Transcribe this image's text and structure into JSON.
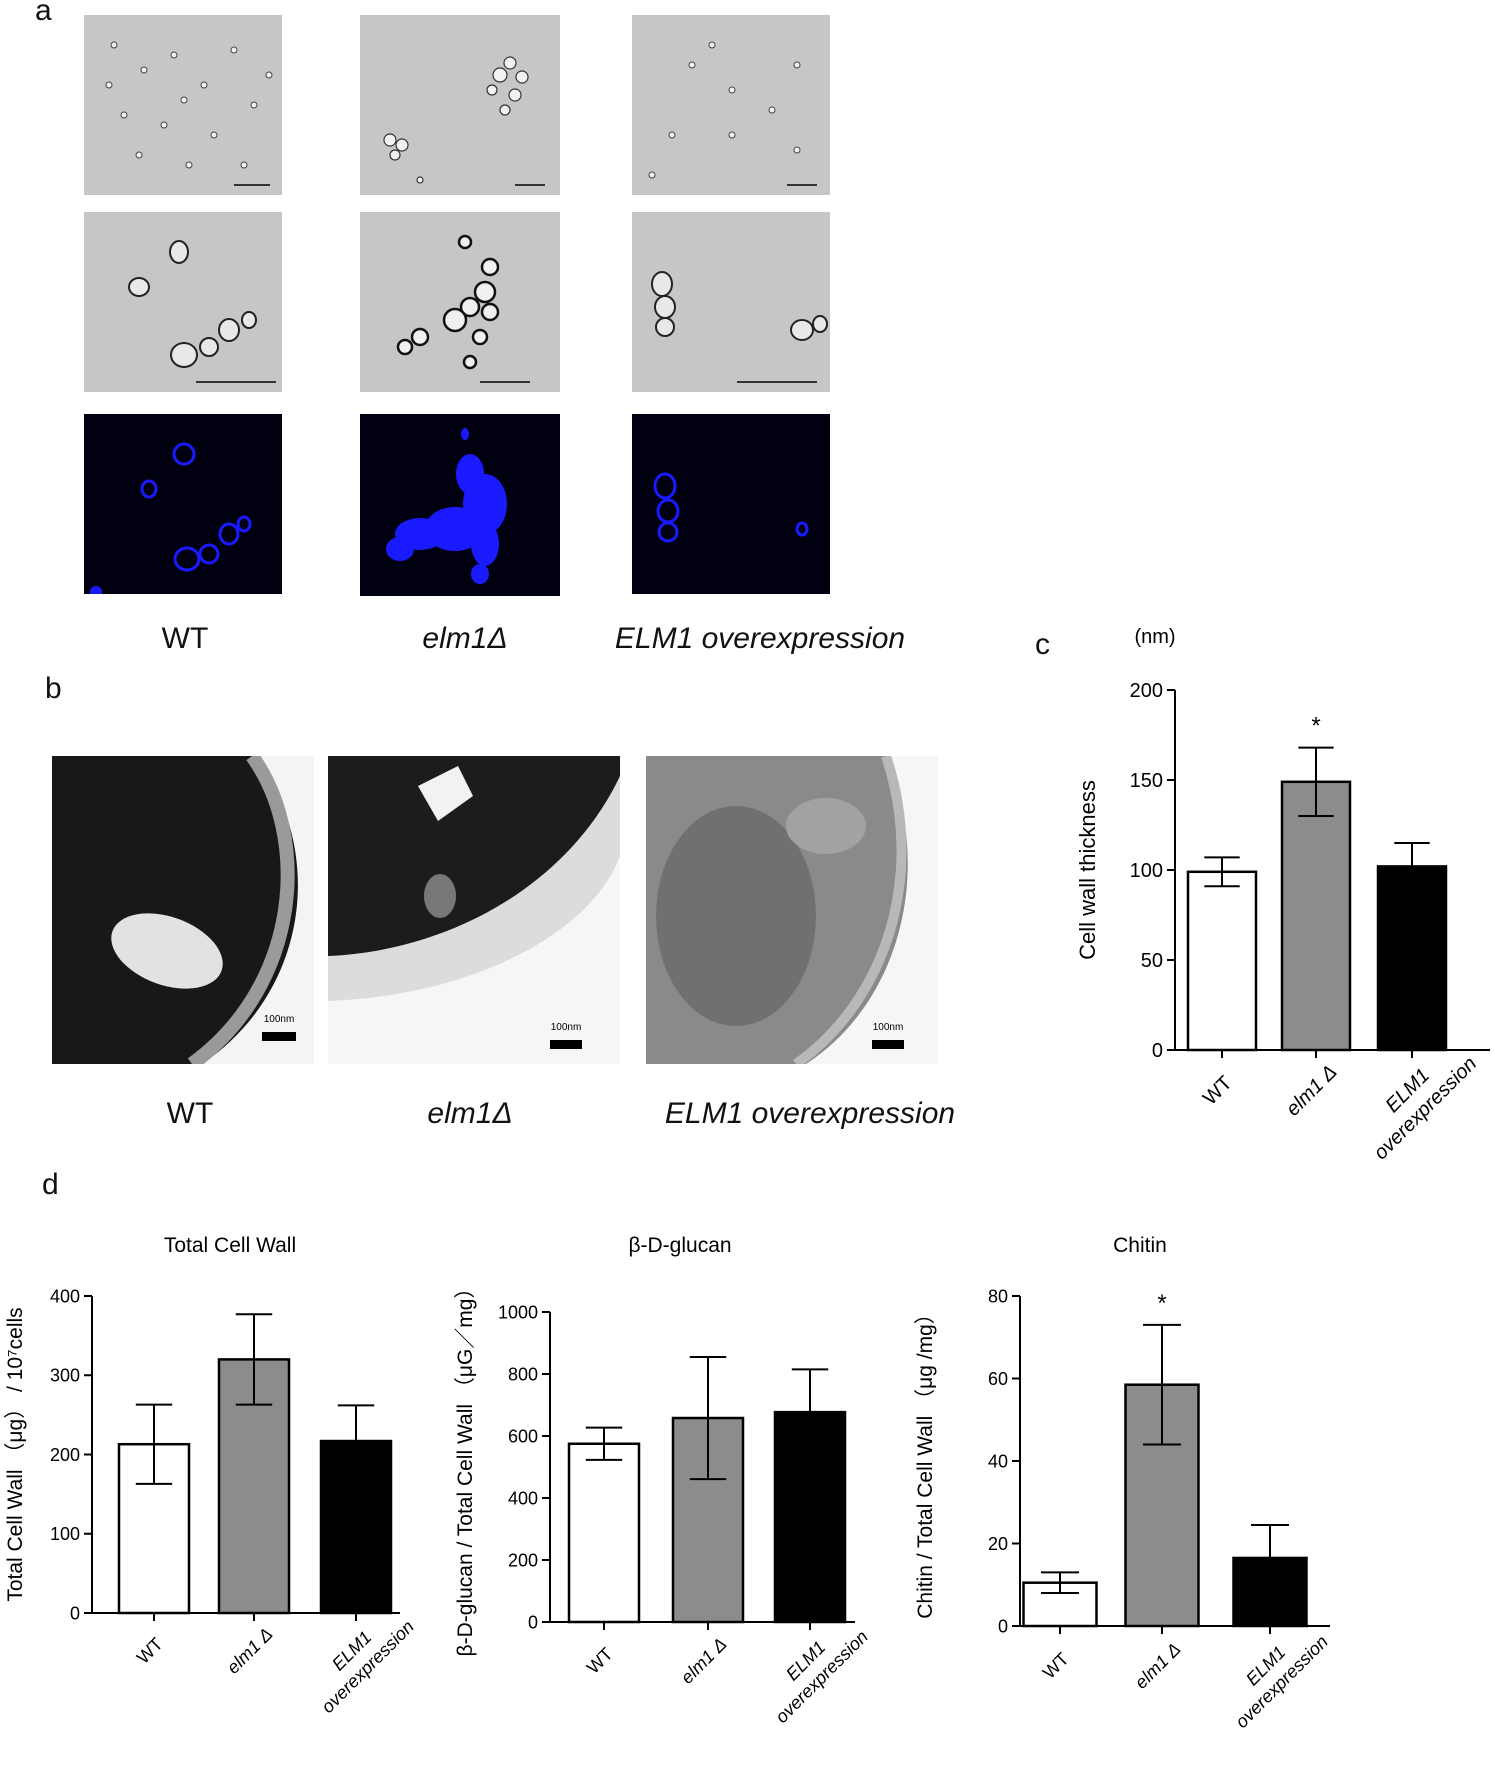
{
  "panels": {
    "a": {
      "letter": "a",
      "strains": [
        "WT",
        "elm1Δ",
        "ELM1 overexpression"
      ]
    },
    "b": {
      "letter": "b",
      "scale_label": "100nm",
      "strains": [
        "WT",
        "elm1Δ",
        "ELM1 overexpression"
      ]
    },
    "c": {
      "letter": "c"
    },
    "d": {
      "letter": "d"
    }
  },
  "colors": {
    "wt_bar": "#ffffff",
    "elm1_bar": "#8c8c8c",
    "overexp_bar": "#000000",
    "fluorescence_bg": "#000010",
    "fluorescence_stain": "#1a1aff",
    "brightfield_bg": "#c6c6c6"
  },
  "chart_data": [
    {
      "id": "c",
      "type": "bar",
      "title": "",
      "unit_label": "(nm)",
      "ylabel": "Cell wall thickness",
      "ylim": [
        0,
        200
      ],
      "yticks": [
        0,
        50,
        100,
        150,
        200
      ],
      "categories": [
        "WT",
        "elm1 Δ",
        "ELM1 overexpression"
      ],
      "category_lines": [
        [
          "WT"
        ],
        [
          "elm1 Δ"
        ],
        [
          "ELM1",
          "overexpression"
        ]
      ],
      "values": [
        99,
        149,
        102
      ],
      "errors": [
        8,
        19,
        13
      ],
      "significance": [
        "",
        "*",
        ""
      ]
    },
    {
      "id": "d1",
      "type": "bar",
      "title": "Total Cell Wall",
      "ylabel": "Total Cell Wall （μg） / 10⁷cells",
      "ylim": [
        0,
        400
      ],
      "yticks": [
        0,
        100,
        200,
        300,
        400
      ],
      "categories": [
        "WT",
        "elm1 Δ",
        "ELM1 overexpression"
      ],
      "category_lines": [
        [
          "WT"
        ],
        [
          "elm1 Δ"
        ],
        [
          "ELM1",
          "overexpression"
        ]
      ],
      "values": [
        213,
        320,
        217
      ],
      "errors": [
        50,
        57,
        45
      ],
      "significance": [
        "",
        "",
        ""
      ]
    },
    {
      "id": "d2",
      "type": "bar",
      "title": "β-D-glucan",
      "ylabel": "β-D-glucan / Total Cell Wall （μG／mg）",
      "ylim": [
        0,
        1000
      ],
      "yticks": [
        0,
        200,
        400,
        600,
        800,
        1000
      ],
      "categories": [
        "WT",
        "elm1 Δ",
        "ELM1 overexpression"
      ],
      "category_lines": [
        [
          "WT"
        ],
        [
          "elm1 Δ"
        ],
        [
          "ELM1",
          "overexpression"
        ]
      ],
      "values": [
        575,
        658,
        677
      ],
      "errors": [
        52,
        197,
        138
      ],
      "significance": [
        "",
        "",
        ""
      ]
    },
    {
      "id": "d3",
      "type": "bar",
      "title": "Chitin",
      "ylabel": "Chitin / Total Cell Wall （μg /mg）",
      "ylim": [
        0,
        80
      ],
      "yticks": [
        0,
        20,
        40,
        60,
        80
      ],
      "categories": [
        "WT",
        "elm1 Δ",
        "ELM1 overexpression"
      ],
      "category_lines": [
        [
          "WT"
        ],
        [
          "elm1 Δ"
        ],
        [
          "ELM1",
          "overexpression"
        ]
      ],
      "values": [
        10.5,
        58.5,
        16.5
      ],
      "errors": [
        2.5,
        14.5,
        8
      ],
      "significance": [
        "",
        "*",
        ""
      ]
    }
  ]
}
